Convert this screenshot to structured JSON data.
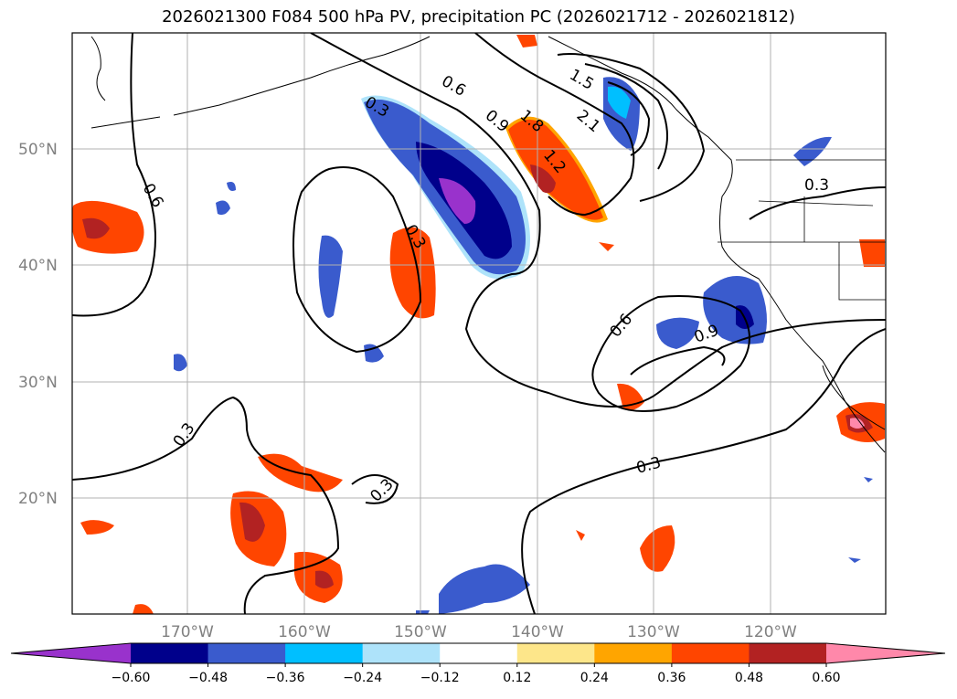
{
  "title": "2026021300 F084 500 hPa PV, precipitation PC (2026021712 - 2026021812)",
  "map": {
    "lat_ticks": [
      "50°N",
      "40°N",
      "30°N",
      "20°N"
    ],
    "lon_ticks": [
      "170°W",
      "160°W",
      "150°W",
      "140°W",
      "130°W",
      "120°W"
    ],
    "contour_labels": [
      "0.3",
      "0.6",
      "0.9",
      "1.2",
      "1.5",
      "1.8",
      "2.1",
      "0.6",
      "0.3",
      "0.6",
      "0.9",
      "0.3",
      "0.3",
      "0.3",
      "0.3"
    ]
  },
  "colorbar": {
    "ticks": [
      "−0.60",
      "−0.48",
      "−0.36",
      "−0.24",
      "−0.12",
      "0.12",
      "0.24",
      "0.36",
      "0.48",
      "0.60"
    ],
    "colors": [
      "#9932cc",
      "#00008b",
      "#3a5bcd",
      "#00bfff",
      "#aee3fa",
      "#ffffff",
      "#fde68a",
      "#ffa500",
      "#ff4500",
      "#b22222",
      "#ff88aa"
    ]
  }
}
